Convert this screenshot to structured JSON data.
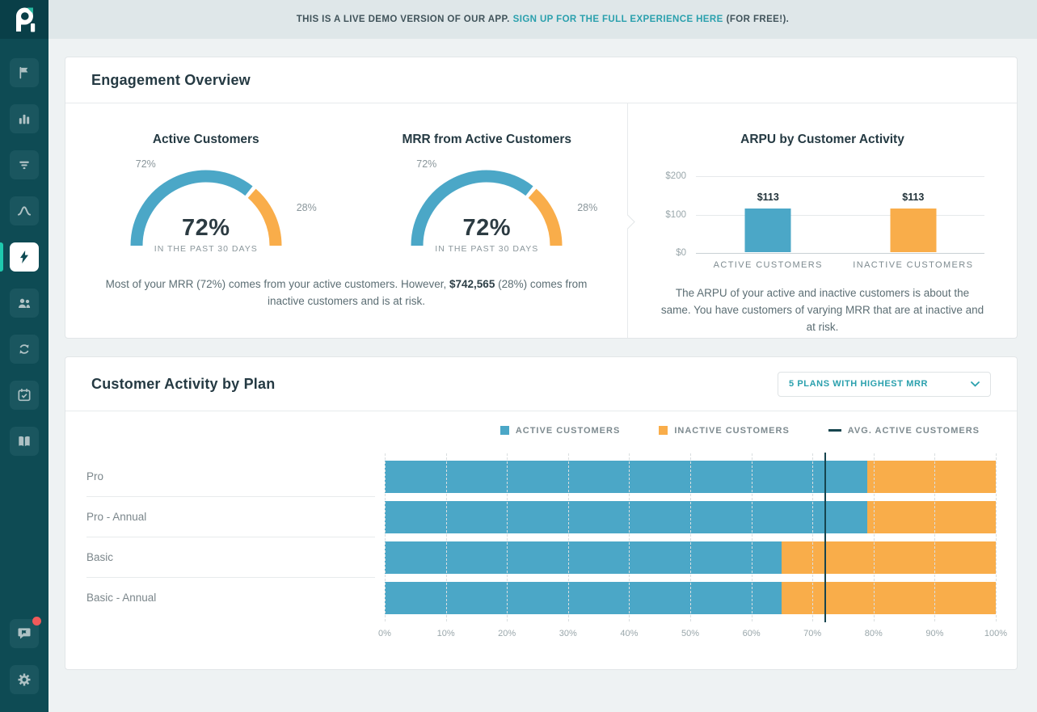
{
  "banner": {
    "prefix": "THIS IS A LIVE DEMO VERSION OF OUR APP.",
    "link": "SIGN UP FOR THE FULL EXPERIENCE HERE",
    "suffix": "(FOR FREE!)."
  },
  "sidebar": {
    "items": [
      {
        "icon": "flag",
        "active": false
      },
      {
        "icon": "bar-chart",
        "active": false
      },
      {
        "icon": "funnel",
        "active": false
      },
      {
        "icon": "trend",
        "active": false
      },
      {
        "icon": "bolt",
        "active": true
      },
      {
        "icon": "users",
        "active": false
      },
      {
        "icon": "refresh",
        "active": false
      },
      {
        "icon": "calendar-check",
        "active": false
      },
      {
        "icon": "book",
        "active": false
      }
    ],
    "bottom_items": [
      {
        "icon": "feedback",
        "active": false,
        "badge": true
      },
      {
        "icon": "gear",
        "active": false,
        "badge": false
      }
    ]
  },
  "engagement": {
    "title": "Engagement Overview",
    "note_left_pre": "Most of your MRR (72%) comes from your active customers. However, ",
    "note_left_bold": "$742,565",
    "note_left_post": " (28%) comes from inactive customers and is at risk.",
    "note_right": "The ARPU of your active and inactive customers is about the same. You have customers of varying MRR that are at inactive and at risk."
  },
  "activity": {
    "title": "Customer Activity by Plan",
    "dropdown_label": "5 PLANS WITH HIGHEST MRR",
    "legend": [
      {
        "label": "ACTIVE CUSTOMERS",
        "swatch": "blue"
      },
      {
        "label": "INACTIVE CUSTOMERS",
        "swatch": "orange"
      },
      {
        "label": "AVG. ACTIVE CUSTOMERS",
        "swatch": "line"
      }
    ]
  },
  "colors": {
    "blue": "#4BA7C7",
    "orange": "#F9AD4A",
    "avg_line": "#16454F",
    "teal_accent": "#1EC9AE",
    "link_teal": "#2AA0AD",
    "sidebar_bg": "#0E4B54"
  },
  "chart_data": [
    {
      "type": "gauge",
      "title": "Active Customers",
      "value_pct": 72,
      "remainder_pct": 28,
      "center_label": "72%",
      "sub_label": "IN THE PAST 30 DAYS",
      "outer_left_label": "72%",
      "outer_right_label": "28%"
    },
    {
      "type": "gauge",
      "title": "MRR from Active Customers",
      "value_pct": 72,
      "remainder_pct": 28,
      "center_label": "72%",
      "sub_label": "IN THE PAST 30 DAYS",
      "outer_left_label": "72%",
      "outer_right_label": "28%"
    },
    {
      "type": "bar",
      "title": "ARPU by Customer Activity",
      "categories": [
        "ACTIVE CUSTOMERS",
        "INACTIVE CUSTOMERS"
      ],
      "values": [
        113,
        113
      ],
      "data_labels": [
        "$113",
        "$113"
      ],
      "yticks": [
        {
          "label": "$0",
          "value": 0
        },
        {
          "label": "$100",
          "value": 100
        },
        {
          "label": "$200",
          "value": 200
        }
      ],
      "ylim": [
        0,
        200
      ],
      "grid": true,
      "legend_position": "none"
    },
    {
      "type": "stacked-bar-horizontal",
      "categories": [
        "Pro",
        "Pro - Annual",
        "Basic",
        "Basic - Annual"
      ],
      "series": [
        {
          "name": "ACTIVE CUSTOMERS",
          "values": [
            79,
            79,
            65,
            65
          ]
        },
        {
          "name": "INACTIVE CUSTOMERS",
          "values": [
            21,
            21,
            35,
            35
          ]
        }
      ],
      "avg_line": {
        "name": "AVG. ACTIVE CUSTOMERS",
        "value": 72
      },
      "xticks": [
        "0%",
        "10%",
        "20%",
        "30%",
        "40%",
        "50%",
        "60%",
        "70%",
        "80%",
        "90%",
        "100%"
      ],
      "xlim": [
        0,
        100
      ],
      "grid": true,
      "legend_position": "top-right"
    }
  ]
}
